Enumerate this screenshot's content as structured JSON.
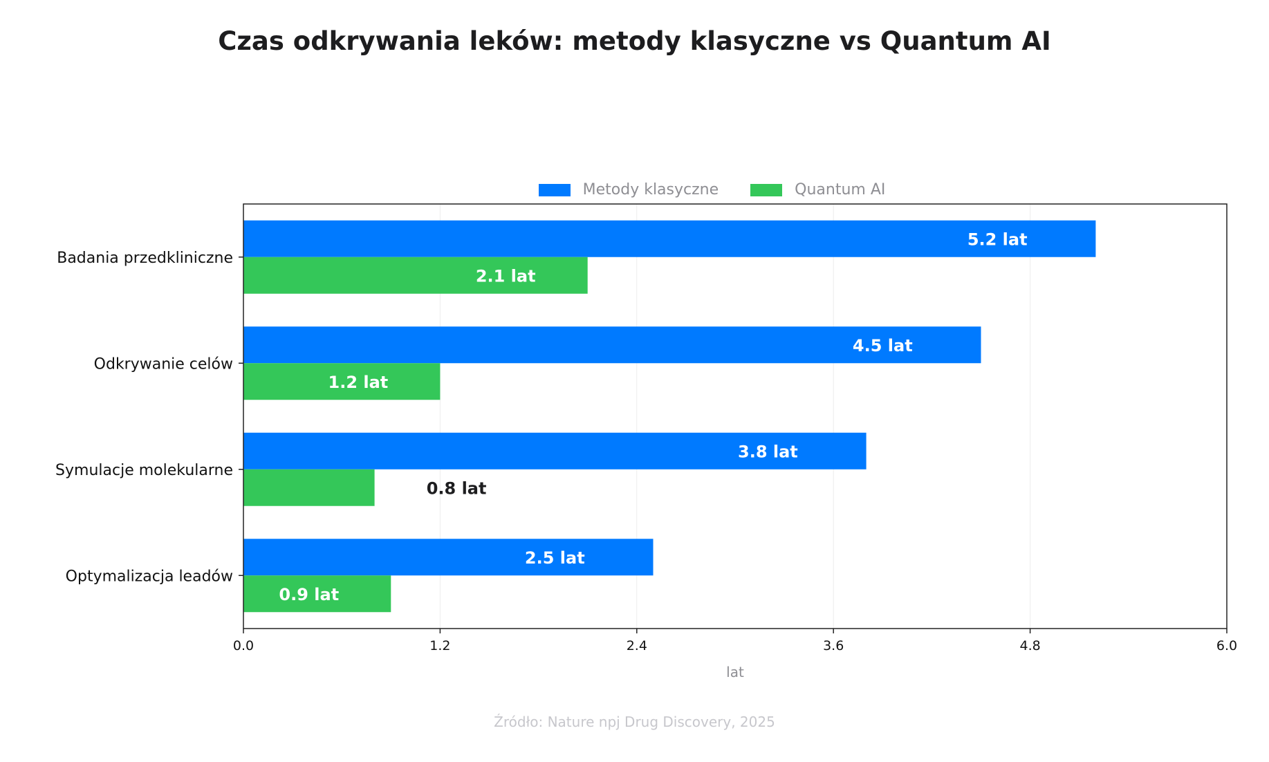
{
  "chart_data": {
    "type": "bar",
    "orientation": "horizontal",
    "title": "Czas odkrywania leków: metody klasyczne vs Quantum AI",
    "xlabel": "lat",
    "ylabel": "",
    "xlim": [
      0,
      6.0
    ],
    "xticks": [
      "0.0",
      "1.2",
      "2.4",
      "3.6",
      "4.8",
      "6.0"
    ],
    "grid": "vertical",
    "legend_position": "top-center",
    "categories": [
      "Badania przedkliniczne",
      "Odkrywanie celów",
      "Symulacje molekularne",
      "Optymalizacja leadów"
    ],
    "series": [
      {
        "name": "Metody klasyczne",
        "color": "#007AFF",
        "values": [
          5.2,
          4.5,
          3.8,
          2.5
        ],
        "labels": [
          "5.2 lat",
          "4.5 lat",
          "3.8 lat",
          "2.5 lat"
        ]
      },
      {
        "name": "Quantum AI",
        "color": "#34C759",
        "values": [
          2.1,
          1.2,
          0.8,
          0.9
        ],
        "labels": [
          "2.1 lat",
          "1.2 lat",
          "0.8 lat",
          "0.9 lat"
        ]
      }
    ],
    "source": "Źródło: Nature npj Drug Discovery, 2025"
  }
}
